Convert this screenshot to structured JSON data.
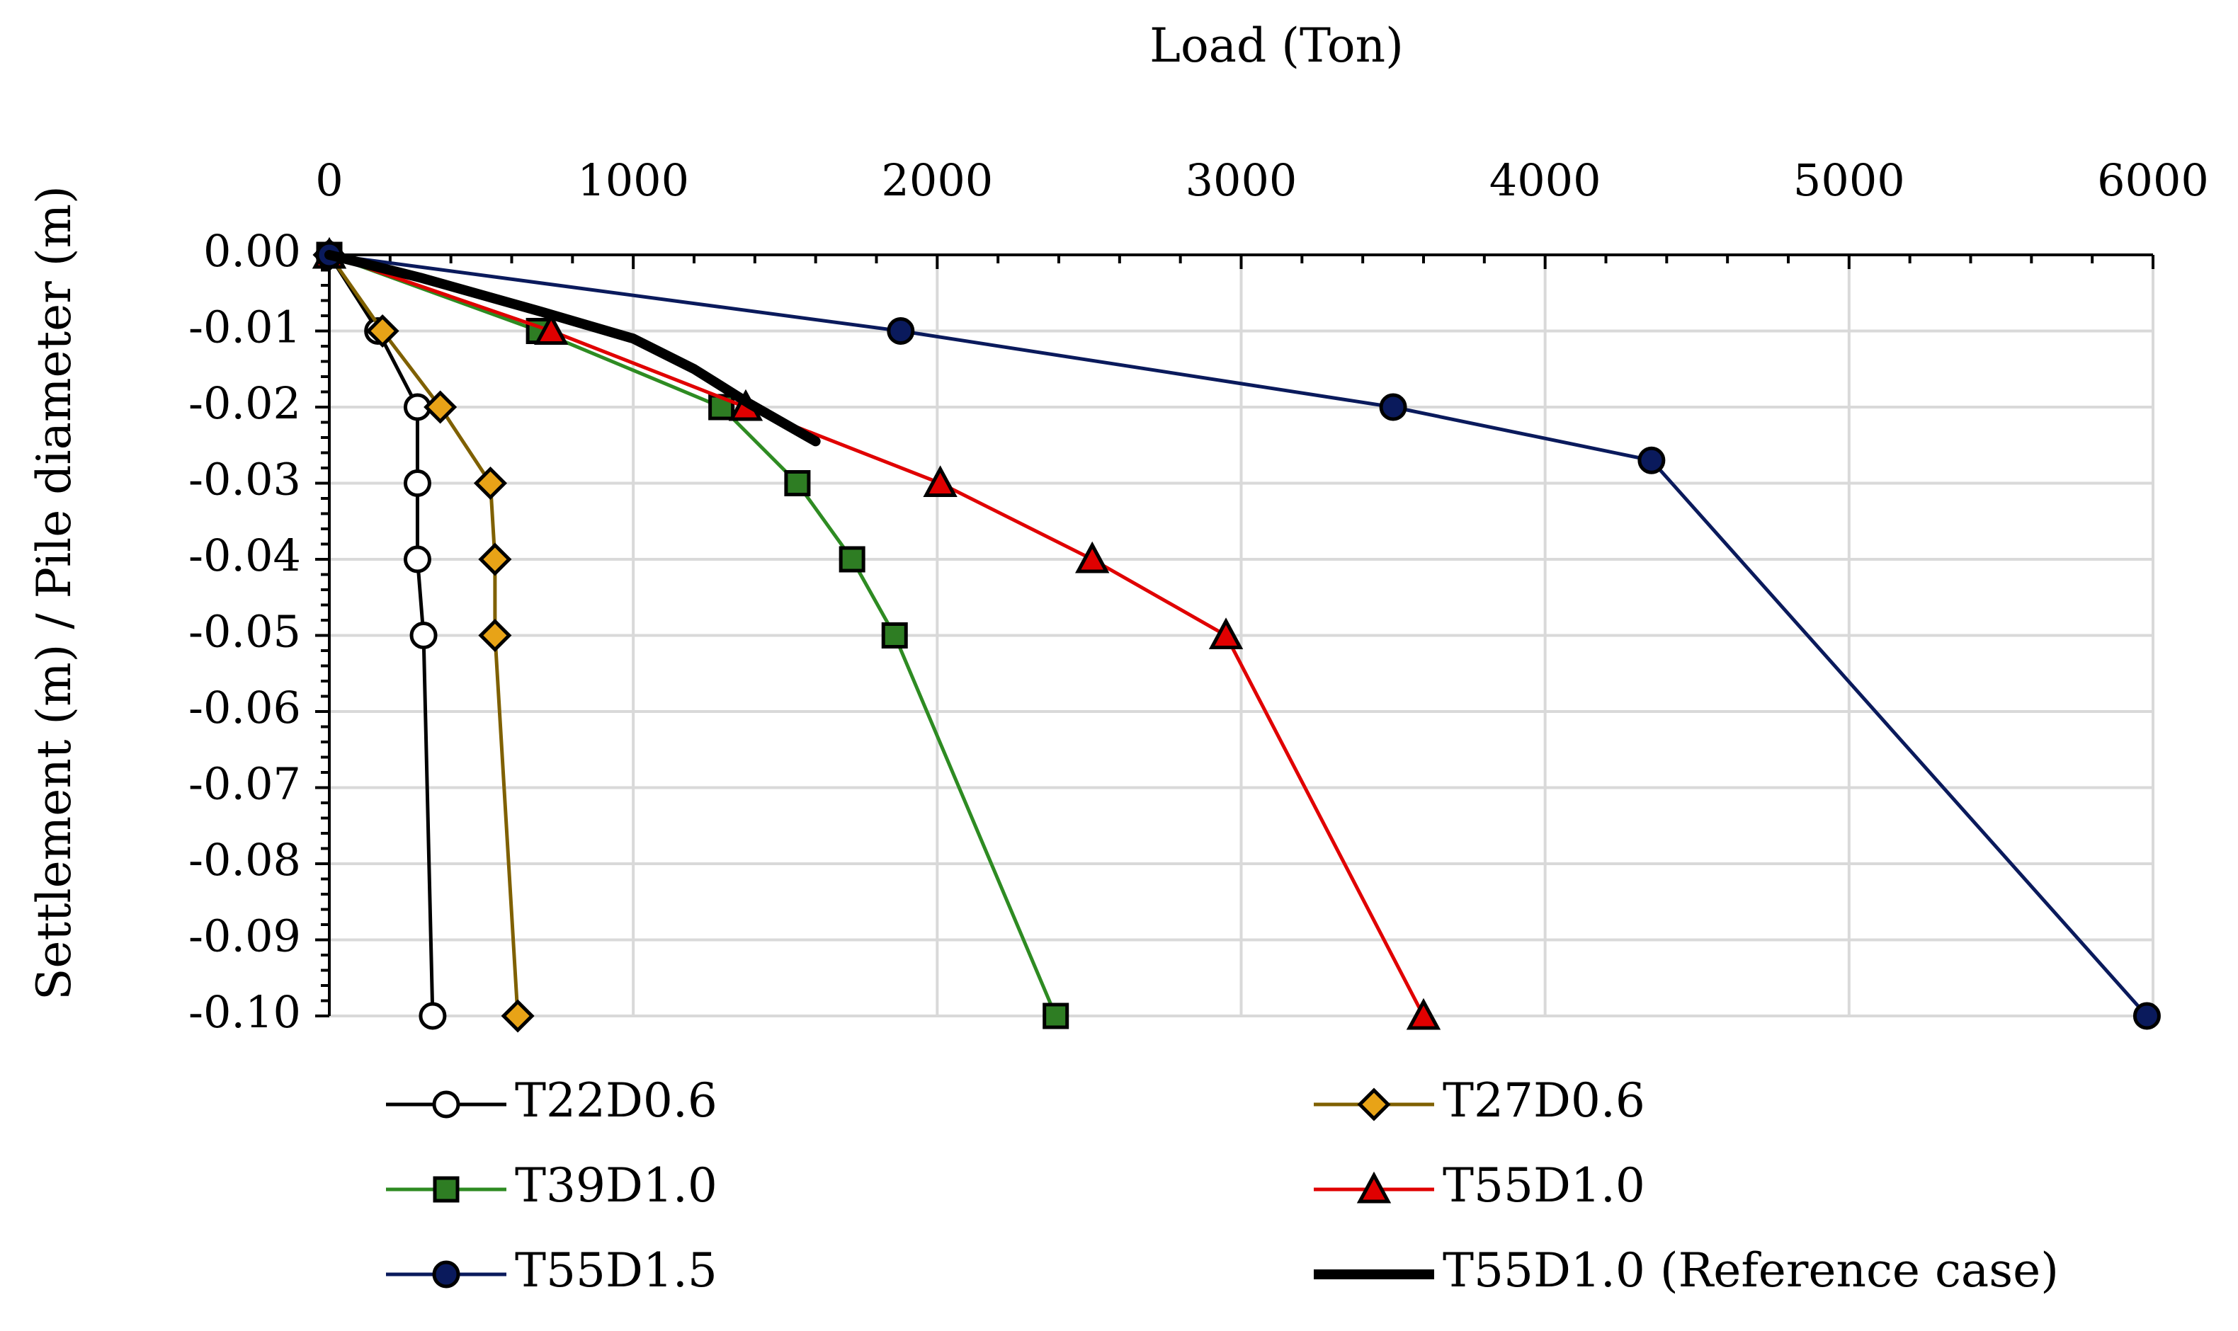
{
  "chart_data": {
    "type": "line",
    "title": "",
    "xlabel": "Load (Ton)",
    "ylabel": "Settlement (m) / Pile diameter (m)",
    "x_axis_position": "top",
    "xlim": [
      0,
      6000
    ],
    "ylim": [
      -0.1,
      0.0
    ],
    "x_ticks": [
      0,
      1000,
      2000,
      3000,
      4000,
      5000,
      6000
    ],
    "x_tick_labels": [
      "0",
      "1000",
      "2000",
      "3000",
      "4000",
      "5000",
      "6000"
    ],
    "y_ticks": [
      0.0,
      -0.01,
      -0.02,
      -0.03,
      -0.04,
      -0.05,
      -0.06,
      -0.07,
      -0.08,
      -0.09,
      -0.1
    ],
    "y_tick_labels": [
      "0.00",
      "-0.01",
      "-0.02",
      "-0.03",
      "-0.04",
      "-0.05",
      "-0.06",
      "-0.07",
      "-0.08",
      "-0.09",
      "-0.10"
    ],
    "grid": true,
    "legend_position": "bottom",
    "series": [
      {
        "name": "T22D0.6",
        "color": "#000000",
        "marker": "circle-open",
        "marker_fill": "#ffffff",
        "points": [
          [
            0,
            0.0
          ],
          [
            160,
            -0.01
          ],
          [
            290,
            -0.02
          ],
          [
            290,
            -0.03
          ],
          [
            290,
            -0.04
          ],
          [
            310,
            -0.05
          ],
          [
            340,
            -0.1
          ]
        ]
      },
      {
        "name": "T27D0.6",
        "color": "#7f6000",
        "marker": "diamond",
        "marker_fill": "#e8a317",
        "points": [
          [
            0,
            0.0
          ],
          [
            175,
            -0.01
          ],
          [
            365,
            -0.02
          ],
          [
            530,
            -0.03
          ],
          [
            545,
            -0.04
          ],
          [
            545,
            -0.05
          ],
          [
            620,
            -0.1
          ]
        ]
      },
      {
        "name": "T39D1.0",
        "color": "#2e8b22",
        "marker": "square",
        "marker_fill": "#2e7d23",
        "points": [
          [
            0,
            0.0
          ],
          [
            690,
            -0.01
          ],
          [
            1290,
            -0.02
          ],
          [
            1540,
            -0.03
          ],
          [
            1720,
            -0.04
          ],
          [
            1860,
            -0.05
          ],
          [
            2390,
            -0.1
          ]
        ]
      },
      {
        "name": "T55D1.0",
        "color": "#e00000",
        "marker": "triangle",
        "marker_fill": "#e00000",
        "points": [
          [
            0,
            0.0
          ],
          [
            730,
            -0.01
          ],
          [
            1370,
            -0.02
          ],
          [
            2010,
            -0.03
          ],
          [
            2510,
            -0.04
          ],
          [
            2950,
            -0.05
          ],
          [
            3600,
            -0.1
          ]
        ]
      },
      {
        "name": "T55D1.5",
        "color": "#0a1a5c",
        "marker": "circle",
        "marker_fill": "#0a1a5c",
        "points": [
          [
            0,
            0.0
          ],
          [
            1880,
            -0.01
          ],
          [
            3500,
            -0.02
          ],
          [
            4350,
            -0.027
          ],
          [
            5980,
            -0.1
          ]
        ]
      },
      {
        "name": "T55D1.0 (Reference case)",
        "color": "#000000",
        "marker": "none",
        "marker_fill": "#000000",
        "line_style": "thick",
        "points": [
          [
            0,
            0.0
          ],
          [
            300,
            -0.003
          ],
          [
            700,
            -0.0075
          ],
          [
            1000,
            -0.011
          ],
          [
            1200,
            -0.015
          ],
          [
            1380,
            -0.0195
          ],
          [
            1600,
            -0.0245
          ]
        ]
      }
    ]
  }
}
